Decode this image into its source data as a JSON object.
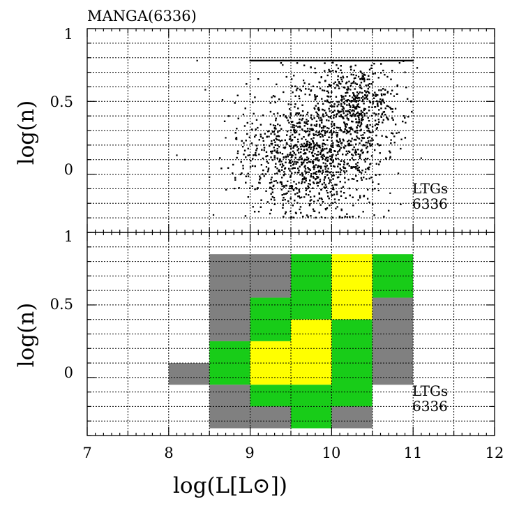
{
  "chart_data": [
    {
      "type": "scatter",
      "title": "MANGA(6336)",
      "ylabel": "log(n)",
      "xlabel": "",
      "xlim": [
        7,
        12
      ],
      "ylim": [
        -0.4,
        1
      ],
      "xticks": [
        "7",
        "8",
        "9",
        "10",
        "11",
        "12"
      ],
      "yticks": [
        "0",
        "0.5",
        "1"
      ],
      "annotation": [
        "LTGs",
        "6336"
      ],
      "grid": true,
      "marker_color": "#000000",
      "cap_value": 0.78,
      "cap_range": [
        9,
        11
      ],
      "sample_points": [
        [
          8.35,
          0.78
        ],
        [
          8.45,
          0.58
        ],
        [
          8.1,
          0.13
        ],
        [
          8.2,
          0.1
        ],
        [
          8.5,
          -0.02
        ],
        [
          11.05,
          0.73
        ],
        [
          11.1,
          0.11
        ],
        [
          8.55,
          -0.28
        ],
        [
          9.0,
          0.55
        ],
        [
          9.5,
          0.3
        ],
        [
          10.0,
          0.1
        ],
        [
          10.2,
          0.6
        ],
        [
          10.4,
          0.45
        ],
        [
          9.2,
          0.05
        ],
        [
          9.7,
          -0.1
        ],
        [
          10.6,
          0.2
        ],
        [
          10.8,
          0.55
        ],
        [
          9.4,
          0.75
        ],
        [
          10.9,
          0.7
        ],
        [
          8.7,
          0.25
        ]
      ]
    },
    {
      "type": "heatmap",
      "ylabel": "log(n)",
      "xlabel": "log(L[L⊙])",
      "xlim": [
        7,
        12
      ],
      "ylim": [
        -0.4,
        1
      ],
      "xticks": [
        "7",
        "8",
        "9",
        "10",
        "11",
        "12"
      ],
      "yticks": [
        "0",
        "0.5",
        "1"
      ],
      "annotation": [
        "LTGs",
        "6336"
      ],
      "grid": true,
      "colors": {
        "gray": "#808080",
        "green": "#18cc18",
        "yellow": "#ffff00"
      },
      "cells": [
        {
          "x": [
            8.0,
            8.5
          ],
          "y": [
            -0.05,
            0.1
          ],
          "color": "gray"
        },
        {
          "x": [
            8.5,
            9.0
          ],
          "y": [
            0.25,
            0.85
          ],
          "color": "gray"
        },
        {
          "x": [
            8.5,
            9.0
          ],
          "y": [
            -0.05,
            0.25
          ],
          "color": "green"
        },
        {
          "x": [
            8.5,
            9.0
          ],
          "y": [
            -0.35,
            -0.05
          ],
          "color": "gray"
        },
        {
          "x": [
            9.0,
            9.5
          ],
          "y": [
            0.55,
            0.85
          ],
          "color": "gray"
        },
        {
          "x": [
            9.0,
            9.5
          ],
          "y": [
            0.25,
            0.55
          ],
          "color": "green"
        },
        {
          "x": [
            9.0,
            9.5
          ],
          "y": [
            -0.05,
            0.25
          ],
          "color": "yellow"
        },
        {
          "x": [
            9.0,
            9.5
          ],
          "y": [
            -0.2,
            -0.05
          ],
          "color": "green"
        },
        {
          "x": [
            9.0,
            9.5
          ],
          "y": [
            -0.35,
            -0.2
          ],
          "color": "gray"
        },
        {
          "x": [
            9.5,
            10.0
          ],
          "y": [
            0.4,
            0.85
          ],
          "color": "green"
        },
        {
          "x": [
            9.5,
            10.0
          ],
          "y": [
            -0.05,
            0.4
          ],
          "color": "yellow"
        },
        {
          "x": [
            9.5,
            10.0
          ],
          "y": [
            -0.2,
            -0.05
          ],
          "color": "green"
        },
        {
          "x": [
            9.5,
            10.0
          ],
          "y": [
            -0.35,
            -0.2
          ],
          "color": "green"
        },
        {
          "x": [
            10.0,
            10.5
          ],
          "y": [
            0.4,
            0.85
          ],
          "color": "yellow"
        },
        {
          "x": [
            10.0,
            10.5
          ],
          "y": [
            -0.2,
            0.4
          ],
          "color": "green"
        },
        {
          "x": [
            10.0,
            10.5
          ],
          "y": [
            -0.35,
            -0.2
          ],
          "color": "gray"
        },
        {
          "x": [
            10.5,
            11.0
          ],
          "y": [
            0.55,
            0.85
          ],
          "color": "green"
        },
        {
          "x": [
            10.5,
            11.0
          ],
          "y": [
            -0.05,
            0.55
          ],
          "color": "gray"
        }
      ]
    }
  ]
}
